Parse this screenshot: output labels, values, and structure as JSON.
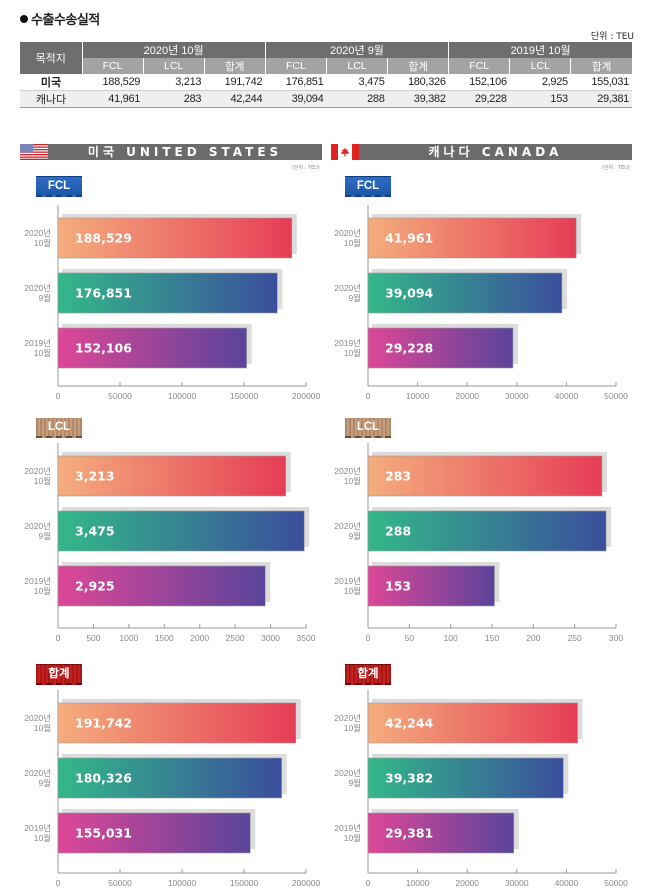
{
  "page": {
    "title": "수출수송실적",
    "unit_label": "단위 : TEU",
    "unit_small": "(단위 : TEU)"
  },
  "summary_table": {
    "dest_header": "목적지",
    "groups": [
      "2020년 10월",
      "2020년 9월",
      "2019년 10월"
    ],
    "sub_headers": [
      "FCL",
      "LCL",
      "합계"
    ],
    "rows": [
      {
        "name": "미국",
        "values": [
          "188,529",
          "3,213",
          "191,742",
          "176,851",
          "3,475",
          "180,326",
          "152,106",
          "2,925",
          "155,031"
        ]
      },
      {
        "name": "캐나다",
        "values": [
          "41,961",
          "283",
          "42,244",
          "39,094",
          "288",
          "39,382",
          "29,228",
          "153",
          "29,381"
        ]
      }
    ]
  },
  "countries": {
    "us": {
      "label": "미국 UNITED STATES",
      "flag": "us-flag-icon"
    },
    "ca": {
      "label": "캐나다 CANADA",
      "flag": "canada-flag-icon"
    }
  },
  "sections": [
    {
      "badge": "FCL"
    },
    {
      "badge": "LCL"
    },
    {
      "badge": "합계"
    }
  ],
  "colors": {
    "bar1_start": "#f4ad7d",
    "bar1_end": "#e63d55",
    "bar2_start": "#33b889",
    "bar2_end": "#3a4e9c",
    "bar3_start": "#de4698",
    "bar3_end": "#5a449a",
    "shadow": "#dcdcdc",
    "header_dark": "#6e6e6e",
    "header_light": "#a3a3a3"
  },
  "chart_data": [
    {
      "id": "us-fcl",
      "type": "bar",
      "orientation": "horizontal",
      "title": "미국 FCL",
      "categories": [
        [
          "2020년",
          "10월"
        ],
        [
          "2020년",
          "9월"
        ],
        [
          "2019년",
          "10월"
        ]
      ],
      "values": [
        188529,
        176851,
        152106
      ],
      "value_labels": [
        "188,529",
        "176,851",
        "152,106"
      ],
      "xlim": [
        0,
        200000
      ],
      "xticks": [
        0,
        50000,
        100000,
        150000,
        200000
      ],
      "xtick_labels": [
        "0",
        "50000",
        "100000",
        "150000",
        "200000"
      ],
      "unit": "TEU"
    },
    {
      "id": "ca-fcl",
      "type": "bar",
      "orientation": "horizontal",
      "title": "캐나다 FCL",
      "categories": [
        [
          "2020년",
          "10월"
        ],
        [
          "2020년",
          "9월"
        ],
        [
          "2019년",
          "10월"
        ]
      ],
      "values": [
        41961,
        39094,
        29228
      ],
      "value_labels": [
        "41,961",
        "39,094",
        "29,228"
      ],
      "xlim": [
        0,
        50000
      ],
      "xticks": [
        0,
        10000,
        20000,
        30000,
        40000,
        50000
      ],
      "xtick_labels": [
        "0",
        "10000",
        "20000",
        "30000",
        "40000",
        "50000"
      ],
      "unit": "TEU"
    },
    {
      "id": "us-lcl",
      "type": "bar",
      "orientation": "horizontal",
      "title": "미국 LCL",
      "categories": [
        [
          "2020년",
          "10월"
        ],
        [
          "2020년",
          "9월"
        ],
        [
          "2019년",
          "10월"
        ]
      ],
      "values": [
        3213,
        3475,
        2925
      ],
      "value_labels": [
        "3,213",
        "3,475",
        "2,925"
      ],
      "xlim": [
        0,
        3500
      ],
      "xticks": [
        0,
        500,
        1000,
        1500,
        2000,
        2500,
        3000,
        3500
      ],
      "xtick_labels": [
        "0",
        "500",
        "1000",
        "1500",
        "2000",
        "2500",
        "3000",
        "3500"
      ],
      "unit": "TEU"
    },
    {
      "id": "ca-lcl",
      "type": "bar",
      "orientation": "horizontal",
      "title": "캐나다 LCL",
      "categories": [
        [
          "2020년",
          "10월"
        ],
        [
          "2020년",
          "9월"
        ],
        [
          "2019년",
          "10월"
        ]
      ],
      "values": [
        283,
        288,
        153
      ],
      "value_labels": [
        "283",
        "288",
        "153"
      ],
      "xlim": [
        0,
        300
      ],
      "xticks": [
        0,
        50,
        100,
        150,
        200,
        250,
        300
      ],
      "xtick_labels": [
        "0",
        "50",
        "100",
        "150",
        "200",
        "250",
        "300"
      ],
      "unit": "TEU"
    },
    {
      "id": "us-total",
      "type": "bar",
      "orientation": "horizontal",
      "title": "미국 합계",
      "categories": [
        [
          "2020년",
          "10월"
        ],
        [
          "2020년",
          "9월"
        ],
        [
          "2019년",
          "10월"
        ]
      ],
      "values": [
        191742,
        180326,
        155031
      ],
      "value_labels": [
        "191,742",
        "180,326",
        "155,031"
      ],
      "xlim": [
        0,
        200000
      ],
      "xticks": [
        0,
        50000,
        100000,
        150000,
        200000
      ],
      "xtick_labels": [
        "0",
        "50000",
        "100000",
        "150000",
        "200000"
      ],
      "unit": "TEU"
    },
    {
      "id": "ca-total",
      "type": "bar",
      "orientation": "horizontal",
      "title": "캐나다 합계",
      "categories": [
        [
          "2020년",
          "10월"
        ],
        [
          "2020년",
          "9월"
        ],
        [
          "2019년",
          "10월"
        ]
      ],
      "values": [
        42244,
        39382,
        29381
      ],
      "value_labels": [
        "42,244",
        "39,382",
        "29,381"
      ],
      "xlim": [
        0,
        50000
      ],
      "xticks": [
        0,
        10000,
        20000,
        30000,
        40000,
        50000
      ],
      "xtick_labels": [
        "0",
        "10000",
        "20000",
        "30000",
        "40000",
        "50000"
      ],
      "unit": "TEU"
    }
  ]
}
